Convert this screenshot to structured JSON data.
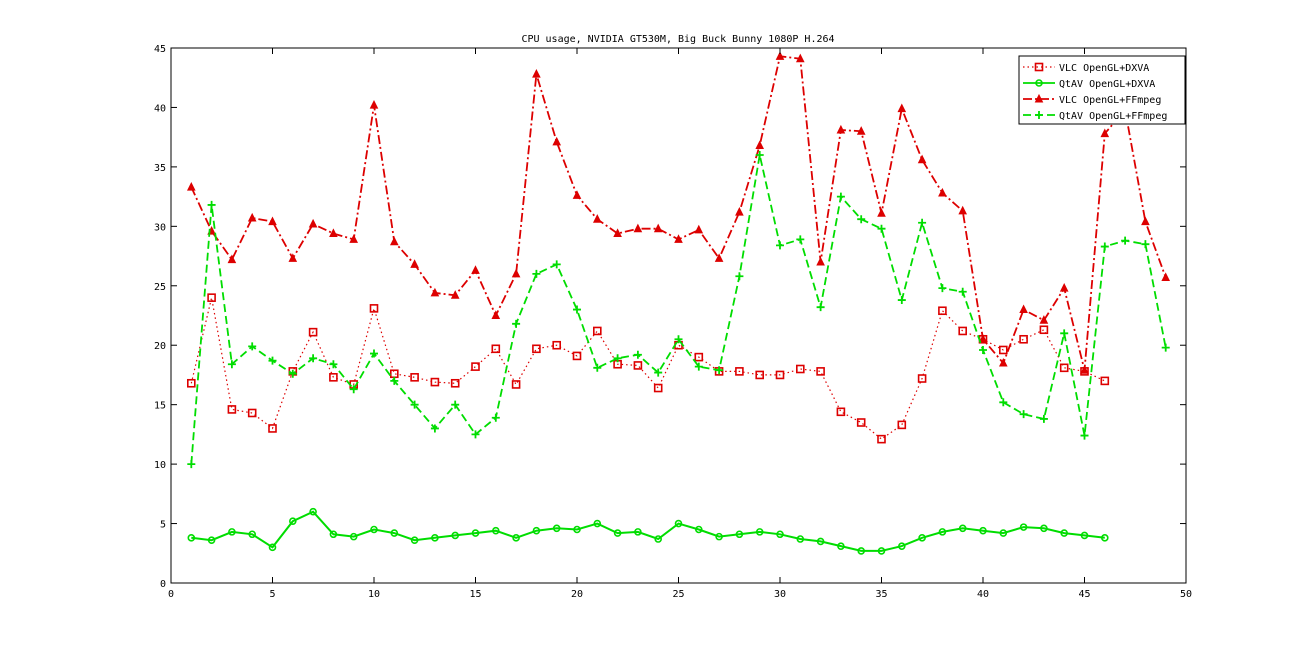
{
  "chart_data": {
    "type": "line",
    "title": "CPU usage, NVIDIA GT530M, Big Buck Bunny 1080P H.264",
    "xlabel": "",
    "ylabel": "",
    "xlim": [
      0,
      50
    ],
    "ylim": [
      0,
      45
    ],
    "xticks": [
      0,
      5,
      10,
      15,
      20,
      25,
      30,
      35,
      40,
      45,
      50
    ],
    "yticks": [
      0,
      5,
      10,
      15,
      20,
      25,
      30,
      35,
      40,
      45
    ],
    "grid": false,
    "legend_position": "top-right",
    "series": [
      {
        "name": "VLC OpenGL+DXVA",
        "color": "#dd0000",
        "line_style": "dotted",
        "marker": "square",
        "x": [
          1,
          2,
          3,
          4,
          5,
          6,
          7,
          8,
          9,
          10,
          11,
          12,
          13,
          14,
          15,
          16,
          17,
          18,
          19,
          20,
          21,
          22,
          23,
          24,
          25,
          26,
          27,
          28,
          29,
          30,
          31,
          32,
          33,
          34,
          35,
          36,
          37,
          38,
          39,
          40,
          41,
          42,
          43,
          44,
          45,
          46
        ],
        "values": [
          16.8,
          24.0,
          14.6,
          14.3,
          13.0,
          17.8,
          21.1,
          17.3,
          16.7,
          23.1,
          17.6,
          17.3,
          16.9,
          16.8,
          18.2,
          19.7,
          16.7,
          19.7,
          20.0,
          19.1,
          21.2,
          18.4,
          18.3,
          16.4,
          20.0,
          19.0,
          17.8,
          17.8,
          17.5,
          17.5,
          18.0,
          17.8,
          14.4,
          13.5,
          12.1,
          13.3,
          17.2,
          22.9,
          21.2,
          20.5,
          19.6,
          20.5,
          21.3,
          18.1,
          17.8,
          17.0
        ]
      },
      {
        "name": "QtAV OpenGL+DXVA",
        "color": "#00dd00",
        "line_style": "solid",
        "marker": "circle",
        "x": [
          1,
          2,
          3,
          4,
          5,
          6,
          7,
          8,
          9,
          10,
          11,
          12,
          13,
          14,
          15,
          16,
          17,
          18,
          19,
          20,
          21,
          22,
          23,
          24,
          25,
          26,
          27,
          28,
          29,
          30,
          31,
          32,
          33,
          34,
          35,
          36,
          37,
          38,
          39,
          40,
          41,
          42,
          43,
          44,
          45,
          46
        ],
        "values": [
          3.8,
          3.6,
          4.3,
          4.1,
          3.0,
          5.2,
          6.0,
          4.1,
          3.9,
          4.5,
          4.2,
          3.6,
          3.8,
          4.0,
          4.2,
          4.4,
          3.8,
          4.4,
          4.6,
          4.5,
          5.0,
          4.2,
          4.3,
          3.7,
          5.0,
          4.5,
          3.9,
          4.1,
          4.3,
          4.1,
          3.7,
          3.5,
          3.1,
          2.7,
          2.7,
          3.1,
          3.8,
          4.3,
          4.6,
          4.4,
          4.2,
          4.7,
          4.6,
          4.2,
          4.0,
          3.8
        ]
      },
      {
        "name": "VLC OpenGL+FFmpeg",
        "color": "#dd0000",
        "line_style": "dash-dot",
        "marker": "triangle",
        "x": [
          1,
          2,
          3,
          4,
          5,
          6,
          7,
          8,
          9,
          10,
          11,
          12,
          13,
          14,
          15,
          16,
          17,
          18,
          19,
          20,
          21,
          22,
          23,
          24,
          25,
          26,
          27,
          28,
          29,
          30,
          31,
          32,
          33,
          34,
          35,
          36,
          37,
          38,
          39,
          40,
          41,
          42,
          43,
          44,
          45,
          46,
          47,
          48,
          49
        ],
        "values": [
          33.3,
          29.6,
          27.2,
          30.7,
          30.4,
          27.3,
          30.2,
          29.4,
          28.9,
          40.2,
          28.7,
          26.8,
          24.4,
          24.2,
          26.3,
          22.5,
          26.0,
          42.8,
          37.1,
          32.6,
          30.6,
          29.4,
          29.8,
          29.8,
          28.9,
          29.7,
          27.3,
          31.2,
          36.8,
          44.3,
          44.1,
          27.0,
          38.1,
          38.0,
          31.1,
          39.9,
          35.6,
          32.8,
          31.3,
          20.5,
          18.5,
          23.0,
          22.1,
          24.8,
          17.9,
          37.8,
          39.8,
          30.4,
          25.7
        ]
      },
      {
        "name": "QtAV OpenGL+FFmpeg",
        "color": "#00dd00",
        "line_style": "dashed",
        "marker": "plus",
        "x": [
          1,
          2,
          3,
          4,
          5,
          6,
          7,
          8,
          9,
          10,
          11,
          12,
          13,
          14,
          15,
          16,
          17,
          18,
          19,
          20,
          21,
          22,
          23,
          24,
          25,
          26,
          27,
          28,
          29,
          30,
          31,
          32,
          33,
          34,
          35,
          36,
          37,
          38,
          39,
          40,
          41,
          42,
          43,
          44,
          45,
          46,
          47,
          48,
          49
        ],
        "values": [
          10.0,
          31.8,
          18.4,
          19.9,
          18.7,
          17.6,
          18.9,
          18.4,
          16.3,
          19.3,
          17.0,
          15.0,
          13.0,
          15.0,
          12.5,
          13.9,
          21.8,
          26.0,
          26.8,
          23.0,
          18.1,
          18.9,
          19.2,
          17.7,
          20.5,
          18.2,
          17.9,
          25.8,
          36.0,
          28.4,
          28.9,
          23.2,
          32.5,
          30.6,
          29.8,
          23.8,
          30.3,
          24.8,
          24.5,
          19.6,
          15.2,
          14.2,
          13.8,
          21.0,
          12.4,
          28.3,
          28.8,
          28.5,
          19.8
        ]
      }
    ]
  }
}
